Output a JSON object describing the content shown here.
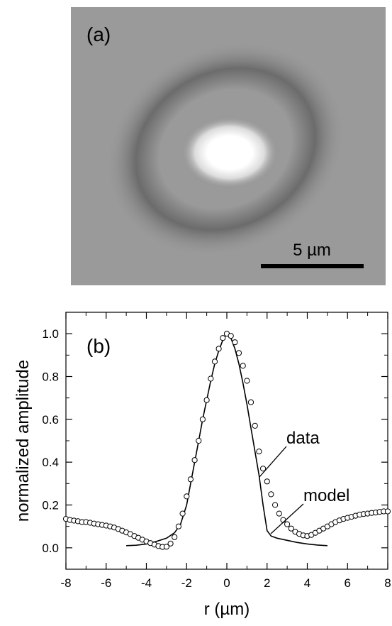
{
  "panel_a": {
    "label": "(a)",
    "scale_bar": {
      "text": "5 µm",
      "length_um": 5
    }
  },
  "chart_data": {
    "type": "scatter",
    "panel_label": "(b)",
    "xlabel": "r (µm)",
    "ylabel": "normalized amplitude",
    "xlim": [
      -8,
      8
    ],
    "ylim": [
      -0.1,
      1.1
    ],
    "x_ticks": [
      "-8",
      "-6",
      "-4",
      "-2",
      "0",
      "2",
      "4",
      "6",
      "8"
    ],
    "y_ticks": [
      "0.0",
      "0.2",
      "0.4",
      "0.6",
      "0.8",
      "1.0"
    ],
    "annotations": [
      "data",
      "model"
    ],
    "series": [
      {
        "name": "data",
        "style": "open-circles",
        "points": [
          [
            -8.0,
            0.135
          ],
          [
            -7.8,
            0.13
          ],
          [
            -7.6,
            0.127
          ],
          [
            -7.4,
            0.124
          ],
          [
            -7.2,
            0.12
          ],
          [
            -7.0,
            0.12
          ],
          [
            -6.8,
            0.117
          ],
          [
            -6.6,
            0.113
          ],
          [
            -6.4,
            0.11
          ],
          [
            -6.2,
            0.107
          ],
          [
            -6.0,
            0.104
          ],
          [
            -5.8,
            0.1
          ],
          [
            -5.6,
            0.095
          ],
          [
            -5.4,
            0.088
          ],
          [
            -5.2,
            0.08
          ],
          [
            -5.0,
            0.072
          ],
          [
            -4.8,
            0.064
          ],
          [
            -4.6,
            0.055
          ],
          [
            -4.4,
            0.047
          ],
          [
            -4.2,
            0.038
          ],
          [
            -4.0,
            0.03
          ],
          [
            -3.8,
            0.022
          ],
          [
            -3.6,
            0.015
          ],
          [
            -3.4,
            0.008
          ],
          [
            -3.2,
            0.004
          ],
          [
            -3.0,
            0.005
          ],
          [
            -2.8,
            0.02
          ],
          [
            -2.6,
            0.05
          ],
          [
            -2.4,
            0.1
          ],
          [
            -2.2,
            0.16
          ],
          [
            -2.0,
            0.24
          ],
          [
            -1.8,
            0.32
          ],
          [
            -1.6,
            0.41
          ],
          [
            -1.4,
            0.5
          ],
          [
            -1.2,
            0.6
          ],
          [
            -1.0,
            0.69
          ],
          [
            -0.8,
            0.79
          ],
          [
            -0.6,
            0.87
          ],
          [
            -0.4,
            0.93
          ],
          [
            -0.2,
            0.98
          ],
          [
            0.0,
            1.0
          ],
          [
            0.2,
            0.99
          ],
          [
            0.4,
            0.96
          ],
          [
            0.6,
            0.91
          ],
          [
            0.8,
            0.85
          ],
          [
            1.0,
            0.78
          ],
          [
            1.2,
            0.68
          ],
          [
            1.4,
            0.57
          ],
          [
            1.6,
            0.45
          ],
          [
            1.8,
            0.37
          ],
          [
            2.0,
            0.31
          ],
          [
            2.2,
            0.25
          ],
          [
            2.4,
            0.2
          ],
          [
            2.6,
            0.16
          ],
          [
            2.8,
            0.13
          ],
          [
            3.0,
            0.11
          ],
          [
            3.2,
            0.09
          ],
          [
            3.4,
            0.075
          ],
          [
            3.6,
            0.065
          ],
          [
            3.8,
            0.058
          ],
          [
            4.0,
            0.055
          ],
          [
            4.2,
            0.06
          ],
          [
            4.4,
            0.07
          ],
          [
            4.6,
            0.08
          ],
          [
            4.8,
            0.09
          ],
          [
            5.0,
            0.1
          ],
          [
            5.2,
            0.11
          ],
          [
            5.4,
            0.12
          ],
          [
            5.6,
            0.128
          ],
          [
            5.8,
            0.135
          ],
          [
            6.0,
            0.14
          ],
          [
            6.2,
            0.145
          ],
          [
            6.4,
            0.15
          ],
          [
            6.6,
            0.155
          ],
          [
            6.8,
            0.158
          ],
          [
            7.0,
            0.16
          ],
          [
            7.2,
            0.163
          ],
          [
            7.4,
            0.165
          ],
          [
            7.6,
            0.168
          ],
          [
            7.8,
            0.17
          ],
          [
            8.0,
            0.17
          ]
        ]
      },
      {
        "name": "model",
        "style": "solid-line",
        "points": [
          [
            -5.0,
            0.01
          ],
          [
            -4.5,
            0.012
          ],
          [
            -4.0,
            0.018
          ],
          [
            -3.5,
            0.03
          ],
          [
            -3.0,
            0.045
          ],
          [
            -2.6,
            0.07
          ],
          [
            -2.3,
            0.11
          ],
          [
            -2.0,
            0.2
          ],
          [
            -1.8,
            0.3
          ],
          [
            -1.6,
            0.4
          ],
          [
            -1.4,
            0.5
          ],
          [
            -1.2,
            0.6
          ],
          [
            -1.0,
            0.69
          ],
          [
            -0.8,
            0.78
          ],
          [
            -0.6,
            0.86
          ],
          [
            -0.4,
            0.92
          ],
          [
            -0.2,
            0.97
          ],
          [
            0.0,
            1.0
          ],
          [
            0.2,
            0.98
          ],
          [
            0.4,
            0.93
          ],
          [
            0.6,
            0.86
          ],
          [
            0.8,
            0.77
          ],
          [
            1.0,
            0.67
          ],
          [
            1.2,
            0.56
          ],
          [
            1.4,
            0.45
          ],
          [
            1.6,
            0.34
          ],
          [
            1.8,
            0.2
          ],
          [
            2.0,
            0.08
          ],
          [
            2.2,
            0.055
          ],
          [
            2.5,
            0.045
          ],
          [
            3.0,
            0.035
          ],
          [
            3.5,
            0.025
          ],
          [
            4.0,
            0.018
          ],
          [
            4.5,
            0.013
          ],
          [
            5.0,
            0.01
          ]
        ]
      }
    ]
  }
}
